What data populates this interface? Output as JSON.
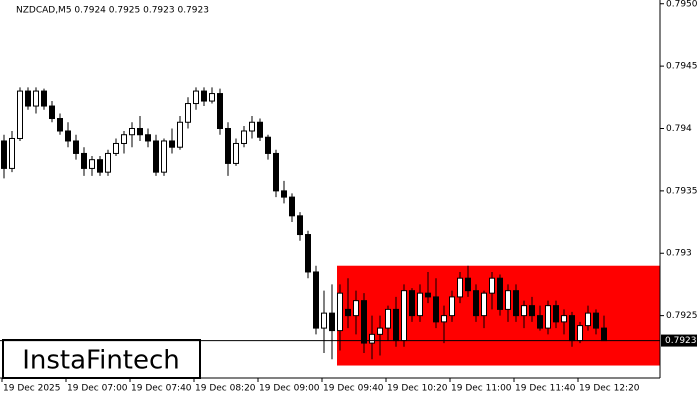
{
  "chart_data": {
    "type": "candlestick",
    "info": "NZDCAD,M5  0.7924 0.7925 0.7923 0.7923",
    "watermark": "InstaFintech",
    "open": [
      0.7939,
      0.79368,
      0.79392,
      0.7943,
      0.79418,
      0.7943,
      0.79418,
      0.79408,
      0.79398,
      0.7939,
      0.7938,
      0.79368,
      0.79375,
      0.79365,
      0.7938,
      0.79388,
      0.79395,
      0.794,
      0.79395,
      0.7939,
      0.79365,
      0.7939,
      0.79385,
      0.79405,
      0.7942,
      0.7943,
      0.79422,
      0.79428,
      0.794,
      0.79372,
      0.79388,
      0.79398,
      0.79405,
      0.79393,
      0.7938,
      0.7935,
      0.79345,
      0.7933,
      0.79315,
      0.79285,
      0.7924,
      0.79252,
      0.79238,
      0.79255,
      0.7925,
      0.79262,
      0.79228,
      0.79235,
      0.7924,
      0.79255,
      0.7923,
      0.7927,
      0.7925,
      0.79268,
      0.79265,
      0.79245,
      0.7925,
      0.79265,
      0.7928,
      0.7927,
      0.7925,
      0.79268,
      0.7928,
      0.79255,
      0.7927,
      0.7925,
      0.79258,
      0.7925,
      0.7924,
      0.79258,
      0.79245,
      0.7925,
      0.7923,
      0.79242,
      0.79252,
      0.7924
    ],
    "high": [
      0.79395,
      0.79398,
      0.79433,
      0.79433,
      0.79433,
      0.79432,
      0.79422,
      0.79412,
      0.79405,
      0.79395,
      0.79385,
      0.79378,
      0.79378,
      0.79383,
      0.79392,
      0.79398,
      0.79405,
      0.7941,
      0.794,
      0.79395,
      0.79392,
      0.794,
      0.7941,
      0.79425,
      0.79433,
      0.79433,
      0.79433,
      0.79432,
      0.79405,
      0.79392,
      0.79402,
      0.7941,
      0.79408,
      0.79395,
      0.79383,
      0.79358,
      0.79348,
      0.79333,
      0.79318,
      0.7929,
      0.7927,
      0.79275,
      0.79275,
      0.7928,
      0.7927,
      0.79268,
      0.7925,
      0.7925,
      0.79258,
      0.79265,
      0.79275,
      0.79272,
      0.79275,
      0.79285,
      0.7928,
      0.79258,
      0.7927,
      0.79285,
      0.7929,
      0.79275,
      0.7927,
      0.79285,
      0.79283,
      0.79275,
      0.79275,
      0.79262,
      0.79265,
      0.79258,
      0.79262,
      0.79262,
      0.79255,
      0.79253,
      0.79245,
      0.79258,
      0.79255,
      0.7925
    ],
    "low": [
      0.7936,
      0.79365,
      0.7939,
      0.79415,
      0.79412,
      0.79415,
      0.79405,
      0.79395,
      0.79385,
      0.79375,
      0.79362,
      0.79362,
      0.79362,
      0.79362,
      0.79378,
      0.7938,
      0.79385,
      0.7939,
      0.79385,
      0.79362,
      0.79362,
      0.7938,
      0.79383,
      0.794,
      0.79415,
      0.79418,
      0.7942,
      0.79395,
      0.79362,
      0.7937,
      0.79385,
      0.79392,
      0.7939,
      0.79375,
      0.79345,
      0.7934,
      0.79325,
      0.7931,
      0.7928,
      0.79235,
      0.7922,
      0.79215,
      0.79222,
      0.7924,
      0.79235,
      0.7922,
      0.79215,
      0.79218,
      0.7923,
      0.79225,
      0.79225,
      0.79245,
      0.79245,
      0.7926,
      0.7924,
      0.79228,
      0.79245,
      0.7926,
      0.79265,
      0.79245,
      0.7924,
      0.79255,
      0.7925,
      0.79245,
      0.79245,
      0.7924,
      0.79245,
      0.79238,
      0.79235,
      0.7924,
      0.79235,
      0.79225,
      0.79228,
      0.79238,
      0.79235,
      0.7923
    ],
    "close": [
      0.79368,
      0.79392,
      0.7943,
      0.79418,
      0.7943,
      0.79418,
      0.79408,
      0.79398,
      0.7939,
      0.7938,
      0.79368,
      0.79375,
      0.79365,
      0.7938,
      0.79388,
      0.79395,
      0.794,
      0.79395,
      0.7939,
      0.79365,
      0.7939,
      0.79385,
      0.79405,
      0.7942,
      0.7943,
      0.79422,
      0.79428,
      0.794,
      0.79372,
      0.79388,
      0.79398,
      0.79405,
      0.79393,
      0.7938,
      0.7935,
      0.79345,
      0.7933,
      0.79315,
      0.79285,
      0.7924,
      0.79252,
      0.79238,
      0.79268,
      0.7925,
      0.79262,
      0.79228,
      0.79235,
      0.7924,
      0.79255,
      0.7923,
      0.7927,
      0.7925,
      0.79268,
      0.79265,
      0.79245,
      0.7925,
      0.79265,
      0.7928,
      0.7927,
      0.7925,
      0.79268,
      0.7928,
      0.79255,
      0.7927,
      0.7925,
      0.79258,
      0.7925,
      0.7924,
      0.79258,
      0.79245,
      0.7925,
      0.7923,
      0.79242,
      0.79252,
      0.7924,
      0.7923
    ],
    "ylim": [
      0.792,
      0.79503
    ],
    "yticks": [
      {
        "value": 0.795,
        "label": "0.7950"
      },
      {
        "value": 0.7945,
        "label": "0.7945"
      },
      0.794,
      0.7935,
      0.793,
      0.7925
    ],
    "xticks": [
      {
        "value": 0,
        "label": "19 Dec 2025"
      },
      {
        "value": 8,
        "label": "19 Dec 07:00"
      },
      {
        "value": 16,
        "label": "19 Dec 07:40"
      },
      {
        "value": 24,
        "label": "19 Dec 08:20"
      },
      {
        "value": 32,
        "label": "19 Dec 09:00"
      },
      {
        "value": 40,
        "label": "19 Dec 09:40"
      },
      {
        "value": 48,
        "label": "19 Dec 10:20"
      },
      {
        "value": 56,
        "label": "19 Dec 11:00"
      },
      {
        "value": 64,
        "label": "19 Dec 11:40"
      },
      {
        "value": 72,
        "label": "19 Dec 12:20"
      }
    ],
    "price_line": {
      "value": 0.7923,
      "label": "0.7923"
    },
    "zone": {
      "start": 42,
      "high": 0.7929,
      "low": 0.7921,
      "color": "#ff0000"
    }
  }
}
